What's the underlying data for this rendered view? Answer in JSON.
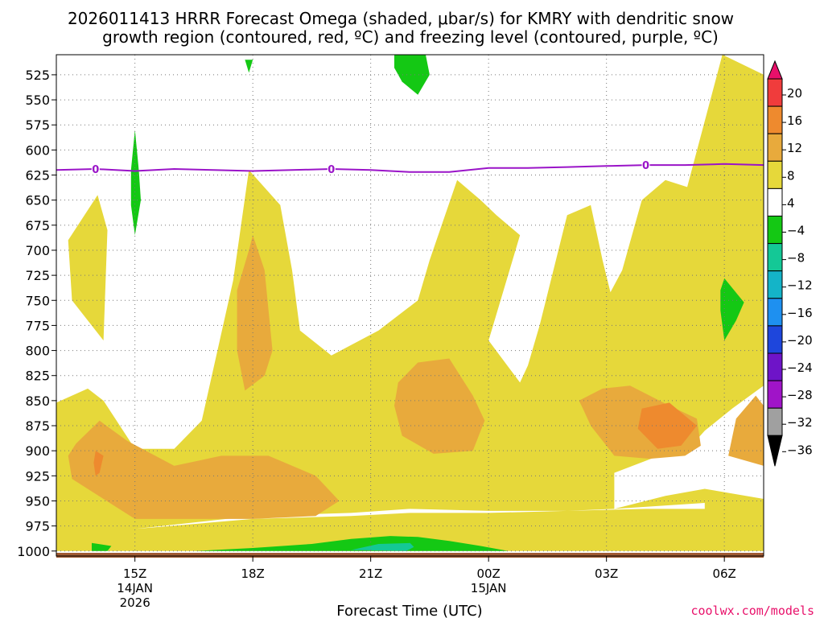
{
  "chart_data": {
    "type": "contour",
    "title_line1": "2026011413 HRRR Forecast Omega (shaded, μbar/s) for KMRY with dendritic snow",
    "title_line2": "growth region (contoured, red, ºC) and freezing level (contoured, purple, ºC)",
    "xlabel": "Forecast Time (UTC)",
    "ylabel": "",
    "credit": "coolwx.com/models",
    "y_ticks": [
      525,
      550,
      575,
      600,
      625,
      650,
      675,
      700,
      725,
      750,
      775,
      800,
      825,
      850,
      875,
      900,
      925,
      950,
      975,
      1000
    ],
    "ylim": [
      505,
      1005
    ],
    "xlim": [
      13,
      31
    ],
    "x_ticks": [
      {
        "x": 15,
        "label": "15Z",
        "sub1": "14JAN",
        "sub2": "2026"
      },
      {
        "x": 18,
        "label": "18Z",
        "sub1": "",
        "sub2": ""
      },
      {
        "x": 21,
        "label": "21Z",
        "sub1": "",
        "sub2": ""
      },
      {
        "x": 24,
        "label": "00Z",
        "sub1": "15JAN",
        "sub2": ""
      },
      {
        "x": 27,
        "label": "03Z",
        "sub1": "",
        "sub2": ""
      },
      {
        "x": 30,
        "label": "06Z",
        "sub1": "",
        "sub2": ""
      }
    ],
    "colorbar": {
      "labels": [
        "20",
        "16",
        "12",
        "8",
        "4",
        "−4",
        "−8",
        "−12",
        "−16",
        "−20",
        "−24",
        "−28",
        "−32",
        "−36"
      ],
      "colors": [
        "#e8106a",
        "#f03c3c",
        "#ee8a2e",
        "#e8aa3c",
        "#e6d83a",
        "#ffffff",
        "#14c814",
        "#14c896",
        "#14b4c8",
        "#1e90f0",
        "#1e46dc",
        "#6e14c8",
        "#a014c8",
        "#a0a0a0",
        "#000000"
      ]
    },
    "freezing_level": {
      "name": "0 ºC",
      "label": "0",
      "color": "#9a14c8",
      "x": [
        13,
        14,
        15,
        16,
        17,
        18,
        19,
        20,
        21,
        22,
        23,
        24,
        25,
        26,
        27,
        28,
        29,
        30,
        31
      ],
      "y": [
        620,
        619,
        621,
        619,
        620,
        621,
        620,
        619,
        620,
        622,
        622,
        618,
        618,
        617,
        616,
        615,
        615,
        614,
        615
      ],
      "label_x": [
        14,
        20,
        28
      ]
    },
    "omega_regions": [
      {
        "name": "omega-4-8-left",
        "level": "4 to 8",
        "color": "#e6d83a",
        "points": [
          [
            14.05,
            645
          ],
          [
            14.3,
            680
          ],
          [
            14.2,
            790
          ],
          [
            13.4,
            750
          ],
          [
            13.3,
            690
          ]
        ]
      },
      {
        "name": "omega-4-8-upper-right",
        "level": "4 to 8",
        "color": "#e6d83a",
        "points": [
          [
            29.95,
            505
          ],
          [
            31,
            525
          ],
          [
            31,
            605
          ],
          [
            30.1,
            625
          ],
          [
            29.3,
            640
          ],
          [
            28.9,
            660
          ]
        ]
      },
      {
        "name": "omega-4-8-main",
        "level": "4 to 8",
        "color": "#e6d83a",
        "points": [
          [
            13,
            852
          ],
          [
            13.8,
            838
          ],
          [
            14.2,
            850
          ],
          [
            15.0,
            898
          ],
          [
            16.0,
            898
          ],
          [
            16.7,
            870
          ],
          [
            17.5,
            730
          ],
          [
            17.9,
            620
          ],
          [
            18.7,
            655
          ],
          [
            19.0,
            720
          ],
          [
            19.2,
            780
          ],
          [
            20.0,
            805
          ],
          [
            21.2,
            780
          ],
          [
            22.2,
            750
          ],
          [
            22.5,
            710
          ],
          [
            23.2,
            630
          ],
          [
            23.8,
            650
          ],
          [
            24.2,
            665
          ],
          [
            24.8,
            685
          ],
          [
            24.0,
            790
          ],
          [
            24.8,
            832
          ],
          [
            25.0,
            815
          ],
          [
            25.3,
            775
          ],
          [
            26.0,
            665
          ],
          [
            26.6,
            655
          ],
          [
            26.9,
            710
          ],
          [
            27.1,
            742
          ],
          [
            27.4,
            720
          ],
          [
            27.9,
            650
          ],
          [
            28.5,
            630
          ],
          [
            29.3,
            640
          ],
          [
            29.95,
            505
          ],
          [
            31,
            525
          ],
          [
            31,
            835
          ],
          [
            30.2,
            858
          ],
          [
            29.5,
            880
          ],
          [
            29.0,
            902
          ],
          [
            28.2,
            907
          ],
          [
            27.2,
            922
          ],
          [
            27.2,
            958
          ],
          [
            28.5,
            945
          ],
          [
            29.5,
            938
          ],
          [
            31,
            948
          ],
          [
            31,
            1000
          ],
          [
            13,
            1000
          ],
          [
            13,
            975
          ],
          [
            15.0,
            978
          ],
          [
            18.0,
            968
          ],
          [
            20.5,
            965
          ],
          [
            22.0,
            962
          ],
          [
            24.0,
            962
          ],
          [
            26.0,
            960
          ],
          [
            28.0,
            958
          ],
          [
            29.5,
            958
          ],
          [
            29.5,
            952
          ],
          [
            27.2,
            958
          ],
          [
            26.0,
            960
          ],
          [
            24.0,
            960
          ],
          [
            22.0,
            958
          ],
          [
            20.5,
            962
          ],
          [
            18.0,
            965
          ],
          [
            15.0,
            978
          ],
          [
            13,
            975
          ]
        ]
      },
      {
        "name": "omega-8-12-west",
        "level": "8 to 12",
        "color": "#e8aa3c",
        "points": [
          [
            13.5,
            893
          ],
          [
            14.1,
            870
          ],
          [
            14.8,
            890
          ],
          [
            16.0,
            915
          ],
          [
            17.2,
            905
          ],
          [
            18.4,
            905
          ],
          [
            19.6,
            925
          ],
          [
            20.2,
            950
          ],
          [
            19.6,
            965
          ],
          [
            18.0,
            968
          ],
          [
            15.0,
            968
          ],
          [
            13.4,
            928
          ],
          [
            13.3,
            905
          ]
        ]
      },
      {
        "name": "omega-8-12-18z-column",
        "level": "8 to 12",
        "color": "#e8aa3c",
        "points": [
          [
            18.0,
            685
          ],
          [
            18.3,
            720
          ],
          [
            18.5,
            800
          ],
          [
            18.3,
            825
          ],
          [
            17.8,
            840
          ],
          [
            17.6,
            800
          ],
          [
            17.6,
            740
          ],
          [
            17.9,
            700
          ]
        ]
      },
      {
        "name": "omega-8-12-22z",
        "level": "8 to 12",
        "color": "#e8aa3c",
        "points": [
          [
            21.7,
            832
          ],
          [
            22.2,
            812
          ],
          [
            23.0,
            808
          ],
          [
            23.6,
            845
          ],
          [
            23.9,
            870
          ],
          [
            23.6,
            900
          ],
          [
            22.6,
            903
          ],
          [
            21.8,
            885
          ],
          [
            21.6,
            855
          ]
        ]
      },
      {
        "name": "omega-8-12-03z",
        "level": "8 to 12",
        "color": "#e8aa3c",
        "points": [
          [
            26.3,
            850
          ],
          [
            26.9,
            838
          ],
          [
            27.6,
            835
          ],
          [
            28.6,
            855
          ],
          [
            29.3,
            868
          ],
          [
            29.4,
            895
          ],
          [
            29.0,
            905
          ],
          [
            28.1,
            908
          ],
          [
            27.2,
            905
          ],
          [
            26.6,
            875
          ],
          [
            26.4,
            858
          ]
        ]
      },
      {
        "name": "omega-8-12-east",
        "level": "8 to 12",
        "color": "#e8aa3c",
        "points": [
          [
            31,
            855
          ],
          [
            31,
            915
          ],
          [
            30.1,
            905
          ],
          [
            30.3,
            868
          ],
          [
            30.8,
            845
          ]
        ]
      },
      {
        "name": "omega-12-16-03z",
        "level": "12 to 16",
        "color": "#ee8a2e",
        "points": [
          [
            27.9,
            858
          ],
          [
            28.6,
            852
          ],
          [
            29.3,
            875
          ],
          [
            28.9,
            895
          ],
          [
            28.3,
            898
          ],
          [
            27.8,
            878
          ]
        ]
      },
      {
        "name": "omega-12-16-15z",
        "level": "12 to 16",
        "color": "#ee8a2e",
        "points": [
          [
            14.0,
            900
          ],
          [
            14.2,
            905
          ],
          [
            14.1,
            922
          ],
          [
            14.0,
            925
          ],
          [
            13.95,
            912
          ]
        ]
      },
      {
        "name": "omega-neg4-neg8-top",
        "level": "-4 to -8",
        "color": "#14c814",
        "points": [
          [
            17.8,
            510
          ],
          [
            18.0,
            510
          ],
          [
            17.9,
            523
          ]
        ]
      },
      {
        "name": "omega-neg4-neg8-22z",
        "level": "-4 to -8",
        "color": "#14c814",
        "points": [
          [
            21.6,
            505
          ],
          [
            22.4,
            505
          ],
          [
            22.5,
            525
          ],
          [
            22.2,
            545
          ],
          [
            21.8,
            532
          ],
          [
            21.6,
            518
          ]
        ]
      },
      {
        "name": "omega-neg4-neg8-15z",
        "level": "-4 to -8",
        "color": "#14c814",
        "points": [
          [
            15.0,
            580
          ],
          [
            15.1,
            620
          ],
          [
            15.15,
            650
          ],
          [
            15.0,
            685
          ],
          [
            14.9,
            655
          ],
          [
            14.9,
            620
          ]
        ]
      },
      {
        "name": "omega-neg4-neg8-06z",
        "level": "-4 to -8",
        "color": "#14c814",
        "points": [
          [
            30.0,
            728
          ],
          [
            30.5,
            752
          ],
          [
            30.3,
            770
          ],
          [
            30.0,
            790
          ],
          [
            29.9,
            760
          ],
          [
            29.9,
            740
          ]
        ]
      },
      {
        "name": "omega-neg4-neg8-15z-surface",
        "level": "-4 to -8",
        "color": "#14c814",
        "points": [
          [
            13.9,
            992
          ],
          [
            14.4,
            995
          ],
          [
            14.3,
            1000
          ],
          [
            13.9,
            1000
          ]
        ]
      },
      {
        "name": "omega-neg4-neg8-surface",
        "level": "-4 to -8",
        "color": "#14c814",
        "points": [
          [
            16.5,
            1000
          ],
          [
            18.0,
            997
          ],
          [
            19.5,
            993
          ],
          [
            20.5,
            988
          ],
          [
            21.5,
            985
          ],
          [
            22.2,
            986
          ],
          [
            23.0,
            990
          ],
          [
            23.8,
            995
          ],
          [
            24.5,
            1000
          ]
        ]
      },
      {
        "name": "omega-neg8-neg12-surface",
        "level": "-8 to -12",
        "color": "#14c896",
        "points": [
          [
            20.5,
            999
          ],
          [
            21.2,
            993
          ],
          [
            22.0,
            992
          ],
          [
            22.1,
            996
          ],
          [
            21.9,
            1000
          ]
        ]
      }
    ]
  }
}
